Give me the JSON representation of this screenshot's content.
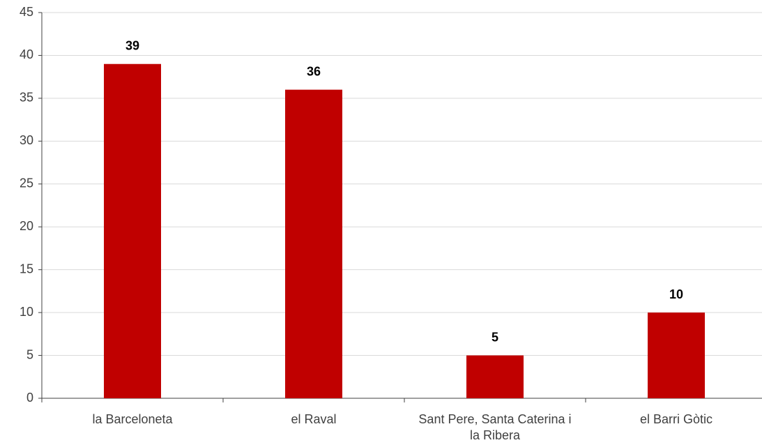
{
  "chart_data": {
    "type": "bar",
    "categories": [
      "la Barceloneta",
      "el Raval",
      "Sant Pere, Santa Caterina i la Ribera",
      "el Barri Gòtic"
    ],
    "values": [
      39,
      36,
      5,
      10
    ],
    "color": "#c00000",
    "ylim": [
      0,
      45
    ],
    "yticks": [
      0,
      5,
      10,
      15,
      20,
      25,
      30,
      35,
      40,
      45
    ],
    "grid": true
  }
}
